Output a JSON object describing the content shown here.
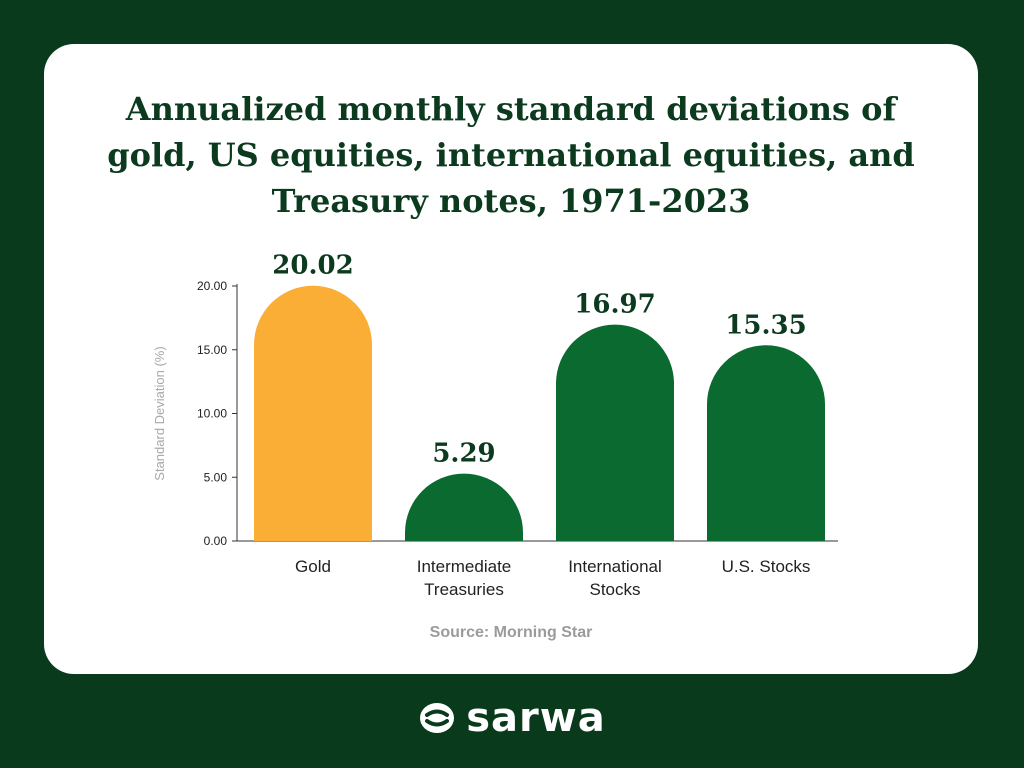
{
  "colors": {
    "highlight": "#fbae35",
    "bar": "#0a6a30",
    "background": "#0a3a1c",
    "card": "#ffffff",
    "title": "#0b3a1e"
  },
  "chart_data": {
    "type": "bar",
    "title_lines": [
      "Annualized monthly standard deviations of",
      "gold, US equities, international equities, and",
      "Treasury notes, 1971-2023"
    ],
    "ylabel": "Standard Deviation (%)",
    "ylim": [
      0,
      20
    ],
    "yticks": [
      "0.00",
      "5.00",
      "10.00",
      "15.00",
      "20.00"
    ],
    "categories": [
      [
        "Gold"
      ],
      [
        "Intermediate",
        "Treasuries"
      ],
      [
        "International",
        "Stocks"
      ],
      [
        "U.S. Stocks"
      ]
    ],
    "values": [
      20.02,
      5.29,
      16.97,
      15.35
    ],
    "value_labels": [
      "20.02",
      "5.29",
      "16.97",
      "15.35"
    ],
    "bar_colors": [
      "#fbae35",
      "#0a6a30",
      "#0a6a30",
      "#0a6a30"
    ],
    "grid": false,
    "legend": "none"
  },
  "source": "Source: Morning Star",
  "brand": {
    "name": "sarwa",
    "logo_icon": "sarwa-logo-icon"
  }
}
